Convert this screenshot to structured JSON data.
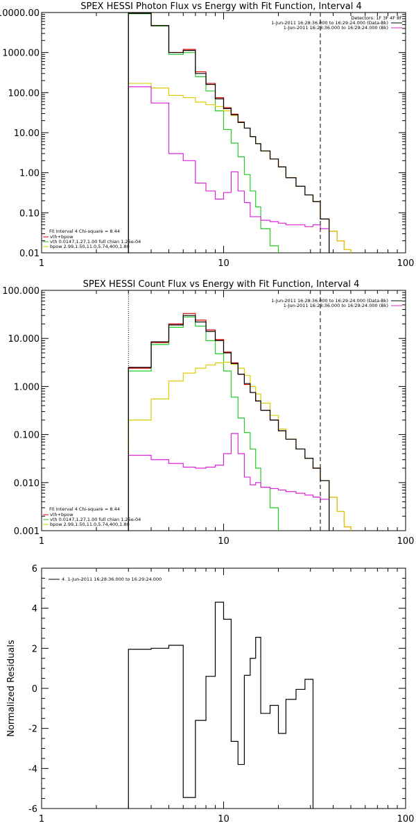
{
  "colors": {
    "data": "#000000",
    "total": "#dd0000",
    "vth": "#22cc22",
    "bpow": "#ddcc00",
    "bk": "#dd22dd"
  },
  "chart_data": [
    {
      "type": "line",
      "title": "SPEX HESSI Photon Flux vs Energy with Fit Function, Interval 4",
      "x_scale": "log",
      "y_scale": "log",
      "xlim": [
        1,
        100
      ],
      "ylim": [
        0.01,
        10000
      ],
      "x_ticks": [
        "1",
        "10",
        "100"
      ],
      "y_ticks": [
        "10000.00",
        "1000.00",
        "100.00",
        "10.00",
        "1.00",
        "0.10",
        "0.01"
      ],
      "detectors_label": "Detectors: 1F 3F 4F 8F",
      "legend_top": [
        {
          "text": "1-Jun-2011 16:28:36.000 to 16:29:24.000 (Data-Bk)",
          "color": "#000000"
        },
        {
          "text": "1-Jun-2011 16:28:36.000 to 16:29:24.000 (Bk)",
          "color": "#dd22dd"
        }
      ],
      "legend_bottom": [
        {
          "text": "Fit Interval  4    Chi-square = 8.44",
          "color": null
        },
        {
          "text": "vth+bpow",
          "color": "#dd0000"
        },
        {
          "text": "vth 0.0147,1.27,1.00  full chian 1.26e-04",
          "color": "#22cc22"
        },
        {
          "text": "bpow 2.99,1.50,11.0,5.74,400,1.80",
          "color": "#ddcc00"
        }
      ],
      "vlines": [
        {
          "x": 3.0,
          "style": "dotted"
        },
        {
          "x": 34,
          "style": "dashed"
        }
      ],
      "edges": [
        3,
        4,
        5,
        6,
        7,
        8,
        9,
        10,
        11,
        12,
        13,
        14,
        15,
        16,
        18,
        20,
        22,
        25,
        28,
        31,
        34,
        38,
        42,
        46,
        50
      ],
      "series": [
        {
          "name": "Data-Bk",
          "color_key": "data",
          "values": [
            9500,
            4700,
            1000,
            1130,
            300,
            160,
            70,
            40,
            28,
            18,
            13,
            8,
            5.3,
            3.5,
            2.2,
            1.4,
            0.75,
            0.46,
            0.28,
            0.19,
            0.07,
            null,
            null,
            null
          ]
        },
        {
          "name": "vth+bpow",
          "color_key": "total",
          "values": [
            9500,
            4700,
            1010,
            1200,
            330,
            170,
            75,
            42,
            29,
            18.5,
            13,
            8,
            5.3,
            3.5,
            2.2,
            1.4,
            0.75,
            0.46,
            0.28,
            0.19,
            0.07,
            0.035,
            0.02,
            0.012
          ]
        },
        {
          "name": "vth",
          "color_key": "vth",
          "values": [
            9300,
            4600,
            900,
            1000,
            250,
            110,
            35,
            12,
            5.5,
            2.5,
            0.9,
            0.35,
            0.14,
            0.04,
            0.015,
            0.005,
            null,
            null,
            null,
            null,
            null,
            null,
            null,
            null
          ]
        },
        {
          "name": "bpow",
          "color_key": "bpow",
          "values": [
            170,
            130,
            85,
            75,
            58,
            50,
            45,
            35,
            27,
            18,
            13,
            8,
            5.3,
            3.5,
            2.2,
            1.4,
            0.75,
            0.46,
            0.28,
            0.19,
            0.07,
            0.035,
            0.02,
            0.012
          ]
        },
        {
          "name": "Bk",
          "color_key": "bk",
          "values": [
            140,
            55,
            3,
            2.0,
            0.55,
            0.35,
            0.22,
            0.32,
            1.05,
            0.35,
            0.18,
            0.08,
            0.08,
            0.065,
            0.06,
            0.055,
            0.05,
            0.05,
            0.045,
            0.05,
            0.04,
            null,
            null,
            null
          ]
        }
      ]
    },
    {
      "type": "line",
      "title": "SPEX HESSI Count Flux vs Energy with Fit Function, Interval 4",
      "x_scale": "log",
      "y_scale": "log",
      "xlim": [
        1,
        100
      ],
      "ylim": [
        0.001,
        100
      ],
      "x_ticks": [
        "1",
        "10",
        "100"
      ],
      "y_ticks": [
        "100.000",
        "10.000",
        "1.000",
        "0.100",
        "0.010",
        "0.001"
      ],
      "legend_top": [
        {
          "text": "1-Jun-2011 16:28:36.000 to 16:29:24.000 (Data-Bk)",
          "color": "#000000"
        },
        {
          "text": "1-Jun-2011 16:28:36.000 to 16:29:24.000 (Bk)",
          "color": "#dd22dd"
        }
      ],
      "legend_bottom": [
        {
          "text": "Fit Interval  4    Chi-square = 8.44",
          "color": null
        },
        {
          "text": "vth+bpow",
          "color": "#dd0000"
        },
        {
          "text": "vth 0.0147,1.27,1.00  full chian 1.26e-04",
          "color": "#22cc22"
        },
        {
          "text": "bpow 2.99,1.50,11.0,5.74,400,1.80",
          "color": "#ddcc00"
        }
      ],
      "vlines": [
        {
          "x": 3.0,
          "style": "dotted"
        },
        {
          "x": 34,
          "style": "dashed"
        }
      ],
      "edges": [
        3,
        4,
        5,
        6,
        7,
        8,
        9,
        10,
        11,
        12,
        13,
        14,
        15,
        16,
        18,
        20,
        22,
        25,
        28,
        31,
        34,
        38,
        42,
        46,
        50
      ],
      "series": [
        {
          "name": "Data-Bk",
          "color_key": "data",
          "values": [
            2.5,
            8.5,
            19,
            30,
            22,
            14,
            9,
            5,
            3.0,
            1.8,
            1.15,
            0.75,
            0.5,
            0.32,
            0.2,
            0.12,
            0.08,
            0.05,
            0.032,
            0.02,
            0.011,
            null,
            null,
            null
          ]
        },
        {
          "name": "vth+bpow",
          "color_key": "total",
          "values": [
            2.4,
            8.2,
            20,
            33,
            24,
            15,
            9.5,
            5.2,
            3.1,
            1.8,
            1.1,
            0.75,
            0.5,
            0.32,
            0.2,
            0.12,
            0.08,
            0.05,
            0.032,
            0.02,
            0.011,
            0.005,
            0.0025,
            0.0012
          ]
        },
        {
          "name": "vth",
          "color_key": "vth",
          "values": [
            2.1,
            7.5,
            17,
            28,
            18,
            9.0,
            4.8,
            2.1,
            0.6,
            0.22,
            0.11,
            0.05,
            0.02,
            0.008,
            0.003,
            0.0008,
            null,
            null,
            null,
            null,
            null,
            null,
            null,
            null
          ]
        },
        {
          "name": "bpow",
          "color_key": "bpow",
          "values": [
            0.2,
            0.55,
            1.3,
            1.9,
            2.4,
            2.8,
            3.1,
            3.2,
            2.9,
            2.4,
            1.7,
            1.0,
            0.7,
            0.45,
            0.25,
            0.13,
            0.08,
            0.05,
            0.032,
            0.02,
            0.011,
            0.005,
            0.0025,
            0.0012
          ]
        },
        {
          "name": "Bk",
          "color_key": "bk",
          "values": [
            0.037,
            0.03,
            0.025,
            0.021,
            0.02,
            0.021,
            0.023,
            0.04,
            0.105,
            0.04,
            0.013,
            0.009,
            0.01,
            0.008,
            0.0075,
            0.007,
            0.0065,
            0.006,
            0.0055,
            0.005,
            0.0045,
            null,
            null,
            null
          ]
        }
      ]
    },
    {
      "type": "line",
      "title": "",
      "ylabel": "Normalized Residuals",
      "x_scale": "log",
      "y_scale": "linear",
      "xlim": [
        1,
        100
      ],
      "ylim": [
        -6,
        6
      ],
      "x_ticks": [
        "1",
        "10",
        "100"
      ],
      "y_ticks": [
        "6",
        "4",
        "2",
        "0",
        "-2",
        "-4",
        "-6"
      ],
      "legend_top_left": [
        {
          "text": "4.  1-Jun-2011 16:28:36.000 to 16:29:24.000",
          "color": "#000000"
        }
      ],
      "edges": [
        3,
        4,
        5,
        6,
        7,
        8,
        9,
        10,
        11,
        12,
        13,
        14,
        15,
        16,
        18,
        20,
        22,
        25,
        28,
        31,
        34
      ],
      "series": [
        {
          "name": "residuals",
          "color_key": "data",
          "values": [
            1.95,
            2.0,
            2.15,
            -5.45,
            -1.6,
            0.6,
            4.3,
            3.45,
            -2.65,
            -3.8,
            0.65,
            1.5,
            2.55,
            -1.25,
            -0.85,
            -2.25,
            -0.55,
            -0.05,
            0.45,
            null
          ]
        }
      ]
    }
  ]
}
